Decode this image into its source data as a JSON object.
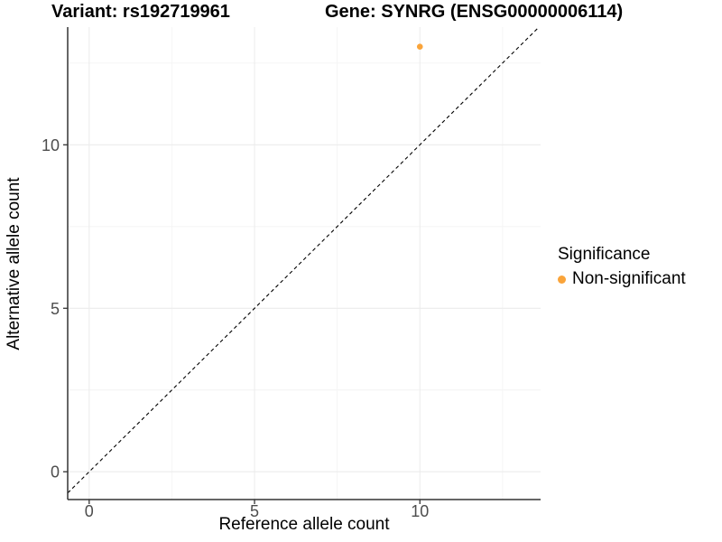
{
  "chart_data": {
    "type": "scatter",
    "title_left": "Variant: rs192719961",
    "title_right": "Gene: SYNRG (ENSG00000006114)",
    "xlabel": "Reference allele count",
    "ylabel": "Alternative allele count",
    "xlim": [
      -0.65,
      13.65
    ],
    "ylim": [
      -0.85,
      13.6
    ],
    "x_ticks": [
      0,
      5,
      10
    ],
    "y_ticks": [
      0,
      5,
      10
    ],
    "x_minor_ticks": [
      2.5,
      7.5,
      12.5
    ],
    "y_minor_ticks": [
      2.5,
      7.5,
      12.5
    ],
    "grid": true,
    "legend_position": "right",
    "identity_line": {
      "equation": "y = x",
      "style": "dashed",
      "color": "#000000"
    },
    "series": [
      {
        "name": "Non-significant",
        "color": "#FAA43A",
        "points": [
          {
            "x": 10,
            "y": 13
          }
        ]
      }
    ],
    "legend": {
      "title": "Significance",
      "items": [
        {
          "label": "Non-significant",
          "color": "#FAA43A"
        }
      ]
    },
    "colors": {
      "background": "#FFFFFF",
      "axis_line": "#333333",
      "tick_label": "#4D4D4D",
      "grid_major": "#ECECEC",
      "grid_minor": "#F4F4F4"
    }
  }
}
